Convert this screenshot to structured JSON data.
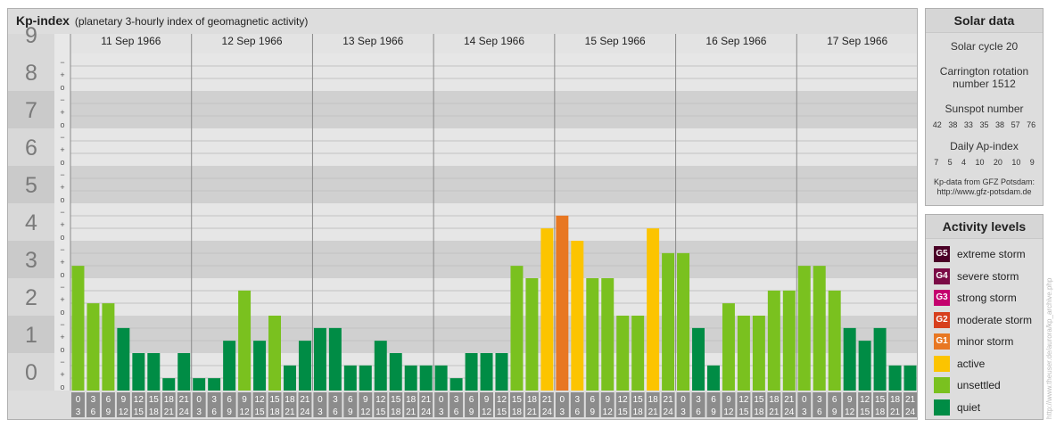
{
  "title": {
    "main": "Kp-index",
    "sub": "(planetary 3-hourly index of geomagnetic activity)"
  },
  "chart_data": {
    "type": "bar",
    "title": "Kp-index",
    "subtitle": "(planetary 3-hourly index of geomagnetic activity)",
    "ylim": [
      0,
      9
    ],
    "y_ticks": [
      "0",
      "1",
      "2",
      "3",
      "4",
      "5",
      "6",
      "7",
      "8",
      "9"
    ],
    "sub_ticks": [
      "o",
      "+",
      "−"
    ],
    "days": [
      "11 Sep 1966",
      "12 Sep 1966",
      "13 Sep 1966",
      "14 Sep 1966",
      "15 Sep 1966",
      "16 Sep 1966",
      "17 Sep 1966"
    ],
    "interval_labels_top": [
      "0",
      "3",
      "6",
      "9",
      "12",
      "15",
      "18",
      "21"
    ],
    "interval_labels_bottom": [
      "3",
      "6",
      "9",
      "12",
      "15",
      "18",
      "21",
      "24"
    ],
    "values": [
      3.33,
      2.33,
      2.33,
      1.67,
      1.0,
      1.0,
      0.33,
      1.0,
      0.33,
      0.33,
      1.33,
      2.67,
      1.33,
      2.0,
      0.67,
      1.33,
      1.67,
      1.67,
      0.67,
      0.67,
      1.33,
      1.0,
      0.67,
      0.67,
      0.67,
      0.33,
      1.0,
      1.0,
      1.0,
      3.33,
      3.0,
      4.33,
      4.67,
      4.0,
      3.0,
      3.0,
      2.0,
      2.0,
      4.33,
      3.67,
      3.67,
      1.67,
      0.67,
      2.33,
      2.0,
      2.0,
      2.67,
      2.67,
      3.33,
      3.33,
      2.67,
      1.67,
      1.33,
      1.67,
      0.67,
      0.67
    ],
    "colors": {
      "quiet": "#008c45",
      "unsettled": "#7ac11f",
      "active": "#fcc400",
      "minor": "#e87722",
      "moderate": "#d73f1d",
      "strong": "#c4006e",
      "severe": "#7a0a45",
      "extreme": "#4a0026"
    }
  },
  "solar": {
    "title": "Solar data",
    "cycle": "Solar cycle 20",
    "carrington_line1": "Carrington rotation",
    "carrington_line2": "number 1512",
    "sunspot_title": "Sunspot number",
    "sunspot": [
      "42",
      "38",
      "33",
      "35",
      "38",
      "57",
      "76"
    ],
    "ap_title": "Daily Ap-index",
    "ap": [
      "7",
      "5",
      "4",
      "10",
      "20",
      "10",
      "9"
    ],
    "source_line1": "Kp-data from GFZ Potsdam:",
    "source_line2": "http://www.gfz-potsdam.de"
  },
  "activity": {
    "title": "Activity levels",
    "levels": [
      {
        "code": "G5",
        "label": "extreme storm",
        "color": "#4a0026"
      },
      {
        "code": "G4",
        "label": "severe storm",
        "color": "#7a0a45"
      },
      {
        "code": "G3",
        "label": "strong storm",
        "color": "#c4006e"
      },
      {
        "code": "G2",
        "label": "moderate storm",
        "color": "#d73f1d"
      },
      {
        "code": "G1",
        "label": "minor storm",
        "color": "#e87722"
      },
      {
        "code": "",
        "label": "active",
        "color": "#fcc400"
      },
      {
        "code": "",
        "label": "unsettled",
        "color": "#7ac11f"
      },
      {
        "code": "",
        "label": "quiet",
        "color": "#008c45"
      }
    ]
  },
  "credit": "http://www.theuser.de/aurora/kp_archive.php"
}
